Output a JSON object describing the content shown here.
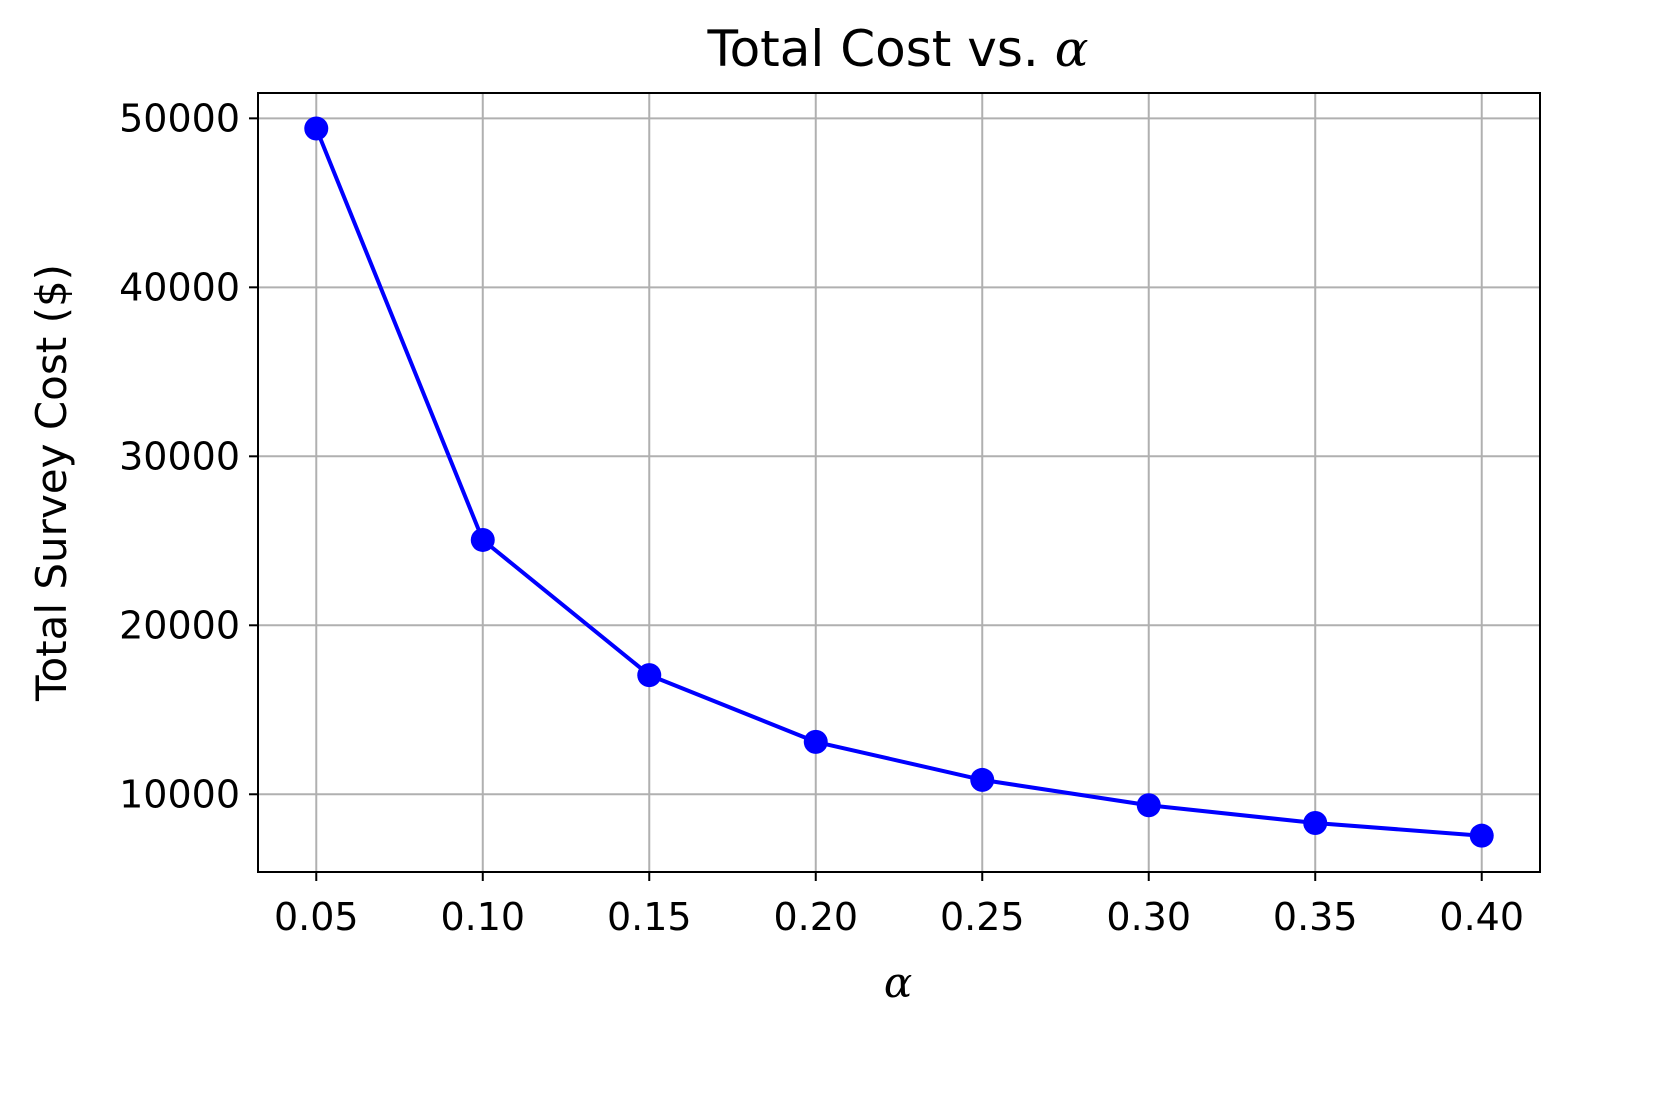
{
  "chart_data": {
    "type": "line",
    "title": "Total Cost vs. ",
    "title_symbol": "α",
    "xlabel": "α",
    "ylabel": "Total Survey Cost ($)",
    "x": [
      0.05,
      0.1,
      0.15,
      0.2,
      0.25,
      0.3,
      0.35,
      0.4
    ],
    "x_tick_labels": [
      "0.05",
      "0.10",
      "0.15",
      "0.20",
      "0.25",
      "0.30",
      "0.35",
      "0.40"
    ],
    "y_ticks": [
      10000,
      20000,
      30000,
      40000,
      50000
    ],
    "y_tick_labels": [
      "10000",
      "20000",
      "30000",
      "40000",
      "50000"
    ],
    "xlim": [
      0.0325,
      0.4175
    ],
    "ylim": [
      5400,
      51500
    ],
    "grid": true,
    "series": [
      {
        "values": [
          49400,
          25050,
          17050,
          13100,
          10850,
          9350,
          8300,
          7550
        ],
        "color": "#0000ff",
        "marker": "circle"
      }
    ]
  }
}
